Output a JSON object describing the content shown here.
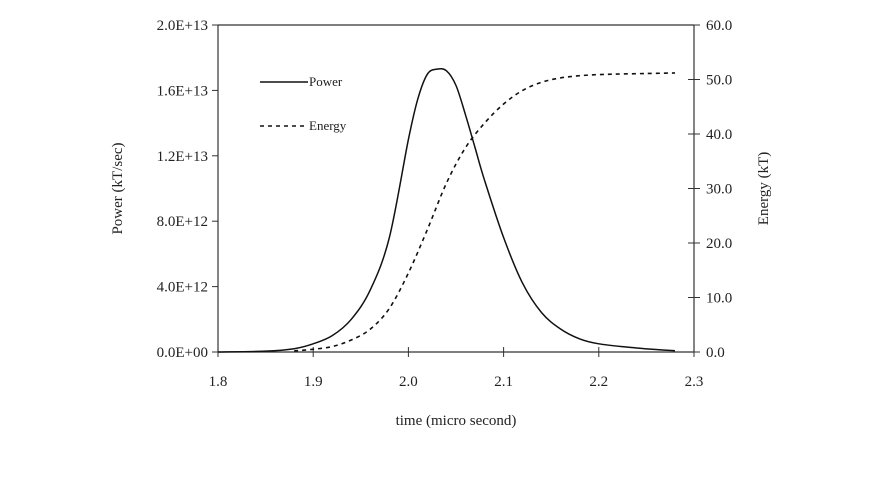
{
  "chart_data": {
    "type": "line",
    "title": "",
    "xlabel": "time (micro second)",
    "ylabel_left": "Power (kT/sec)",
    "ylabel_right": "Energy (kT)",
    "xlim": [
      1.8,
      2.3
    ],
    "ylim_left": [
      0,
      20000000000000.0
    ],
    "ylim_right": [
      0,
      60
    ],
    "x_ticks": [
      "1.8",
      "1.9",
      "2.0",
      "2.1",
      "2.2",
      "2.3"
    ],
    "x_tick_values": [
      1.8,
      1.9,
      2.0,
      2.1,
      2.2,
      2.3
    ],
    "y_left_ticks": [
      "0.0E+00",
      "4.0E+12",
      "8.0E+12",
      "1.2E+13",
      "1.6E+13",
      "2.0E+13"
    ],
    "y_left_tick_values": [
      0,
      4000000000000.0,
      8000000000000.0,
      12000000000000.0,
      16000000000000.0,
      20000000000000.0
    ],
    "y_right_ticks": [
      "0.0",
      "10.0",
      "20.0",
      "30.0",
      "40.0",
      "50.0",
      "60.0"
    ],
    "y_right_tick_values": [
      0,
      10,
      20,
      30,
      40,
      50,
      60
    ],
    "legend_position": "top-left",
    "grid": false,
    "series": [
      {
        "name": "Power",
        "axis": "left",
        "style": "solid",
        "x": [
          1.8,
          1.85,
          1.88,
          1.9,
          1.92,
          1.94,
          1.96,
          1.98,
          2.0,
          2.01,
          2.02,
          2.03,
          2.04,
          2.05,
          2.06,
          2.07,
          2.08,
          2.1,
          2.12,
          2.14,
          2.16,
          2.18,
          2.2,
          2.23,
          2.26,
          2.28
        ],
        "y": [
          0,
          50000000000.0,
          200000000000.0,
          500000000000.0,
          1000000000000.0,
          2000000000000.0,
          3800000000000.0,
          7000000000000.0,
          13000000000000.0,
          15500000000000.0,
          17000000000000.0,
          17300000000000.0,
          17200000000000.0,
          16300000000000.0,
          14500000000000.0,
          12500000000000.0,
          10500000000000.0,
          7000000000000.0,
          4200000000000.0,
          2400000000000.0,
          1400000000000.0,
          800000000000.0,
          500000000000.0,
          300000000000.0,
          150000000000.0,
          80000000000.0
        ]
      },
      {
        "name": "Energy",
        "axis": "right",
        "style": "dashed",
        "x": [
          1.88,
          1.9,
          1.92,
          1.94,
          1.96,
          1.98,
          2.0,
          2.02,
          2.04,
          2.06,
          2.08,
          2.1,
          2.12,
          2.14,
          2.16,
          2.18,
          2.2,
          2.22,
          2.25,
          2.28
        ],
        "y": [
          0.2,
          0.5,
          1.0,
          2.2,
          4.2,
          8.0,
          14.5,
          22.5,
          31.0,
          37.5,
          42.0,
          45.5,
          48.0,
          49.5,
          50.3,
          50.7,
          50.9,
          51.0,
          51.1,
          51.2
        ]
      }
    ]
  }
}
